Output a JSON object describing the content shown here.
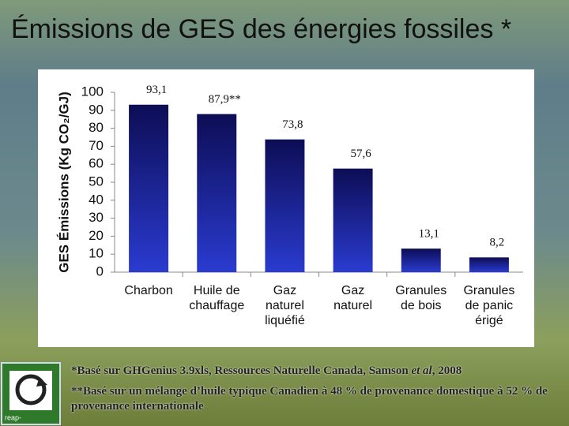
{
  "slide_title": "Émissions de GES des énergies fossiles *",
  "chart_data": {
    "type": "bar",
    "y_axis_label": "GES Émissions (Kg CO₂/GJ)",
    "categories": [
      [
        "Charbon"
      ],
      [
        "Huile de",
        "chauffage"
      ],
      [
        "Gaz",
        "naturel",
        "liquéfié"
      ],
      [
        "Gaz",
        "naturel"
      ],
      [
        "Granules",
        "de bois"
      ],
      [
        "Granules",
        "de panic",
        "érigé"
      ]
    ],
    "values": [
      93.1,
      87.9,
      73.8,
      57.6,
      13.1,
      8.2
    ],
    "value_labels": [
      "93,1",
      "87,9**",
      "73,8",
      "57,6",
      "13,1",
      "8,2"
    ],
    "color": "#0d0d55",
    "ylim": [
      0,
      100
    ],
    "yticks": [
      0,
      10,
      20,
      30,
      40,
      50,
      60,
      70,
      80,
      90,
      100
    ],
    "grid": false
  },
  "footnotes": [
    [
      "*Basé sur GHGenius 3.9xls, Ressources Naturelle Canada, Samson ",
      "et al",
      ", 2008"
    ],
    "**Basé sur un mélange d’huile typique Canadien à 48 % de provenance domestique à 52 % de provenance internationale"
  ],
  "logo": {
    "text": "reap-"
  }
}
